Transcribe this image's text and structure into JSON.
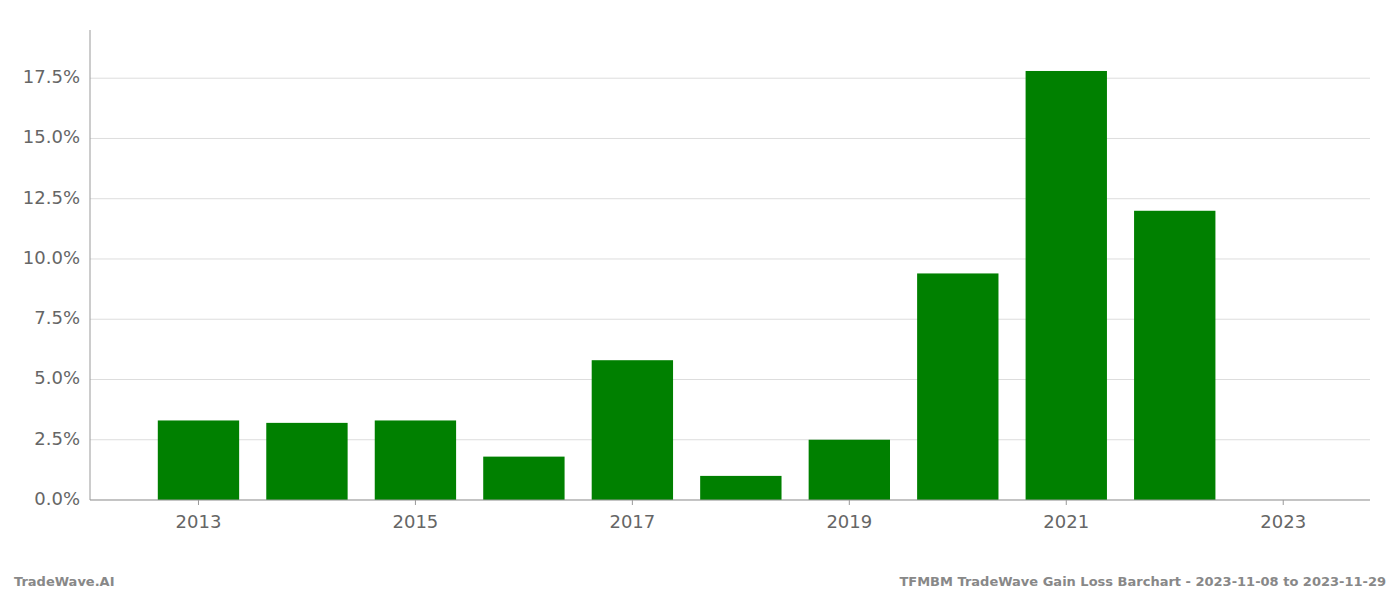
{
  "chart_data": {
    "type": "bar",
    "x": [
      2013,
      2014,
      2015,
      2016,
      2017,
      2018,
      2019,
      2020,
      2021,
      2022
    ],
    "values": [
      0.033,
      0.032,
      0.033,
      0.018,
      0.058,
      0.01,
      0.025,
      0.094,
      0.178,
      0.12
    ],
    "color": "#008000",
    "xlim": [
      2012.0,
      2023.8
    ],
    "xticks": [
      2013,
      2015,
      2017,
      2019,
      2021,
      2023
    ],
    "ylim": [
      0.0,
      0.195
    ],
    "yticks": [
      {
        "value": 0.0,
        "label": "0.0%"
      },
      {
        "value": 0.025,
        "label": "2.5%"
      },
      {
        "value": 0.05,
        "label": "5.0%"
      },
      {
        "value": 0.075,
        "label": "7.5%"
      },
      {
        "value": 0.1,
        "label": "10.0%"
      },
      {
        "value": 0.125,
        "label": "12.5%"
      },
      {
        "value": 0.15,
        "label": "15.0%"
      },
      {
        "value": 0.175,
        "label": "17.5%"
      }
    ],
    "grid": true,
    "annotations": [
      "TradeWave.AI",
      "TFMBM TradeWave Gain Loss Barchart - 2023-11-08 to 2023-11-29"
    ]
  }
}
